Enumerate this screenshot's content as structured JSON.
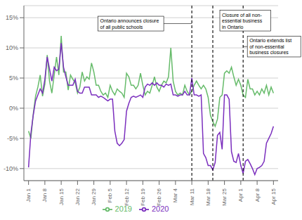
{
  "chart_data": {
    "type": "line",
    "x": [
      0,
      1,
      2,
      3,
      4,
      5,
      6,
      7,
      8,
      9,
      10,
      11,
      12,
      13,
      14,
      15,
      16,
      17,
      18,
      19,
      20,
      21,
      22,
      23,
      24,
      25,
      26,
      27,
      28,
      29,
      30,
      31,
      32,
      33,
      34,
      35,
      36,
      37,
      38,
      39,
      40,
      41,
      42,
      43,
      44,
      45,
      46,
      47,
      48,
      49,
      50,
      51,
      52,
      53,
      54,
      55,
      56,
      57,
      58,
      59,
      60,
      61,
      62,
      63,
      64,
      65,
      66,
      67,
      68,
      69,
      70,
      71,
      72,
      73,
      74,
      75,
      76,
      77,
      78,
      79,
      80,
      81,
      82,
      83,
      84,
      85,
      86,
      87,
      88,
      89,
      90,
      91,
      92,
      93,
      94,
      95,
      96,
      97,
      98,
      99,
      100,
      101,
      102,
      103,
      104,
      105
    ],
    "xlim": [
      -2,
      107
    ],
    "xticks": [
      {
        "value": 0,
        "label": "Jan 1"
      },
      {
        "value": 7,
        "label": "Jan 8"
      },
      {
        "value": 14,
        "label": "Jan 15"
      },
      {
        "value": 21,
        "label": "Jan 22"
      },
      {
        "value": 28,
        "label": "Jan 29"
      },
      {
        "value": 35,
        "label": "Feb 5"
      },
      {
        "value": 42,
        "label": "Feb 12"
      },
      {
        "value": 49,
        "label": "Feb 19"
      },
      {
        "value": 56,
        "label": "Feb 26"
      },
      {
        "value": 63,
        "label": "Mar 4"
      },
      {
        "value": 70,
        "label": "Mar 11"
      },
      {
        "value": 77,
        "label": "Mar 18"
      },
      {
        "value": 84,
        "label": "Mar 25"
      },
      {
        "value": 91,
        "label": "Apr 1"
      },
      {
        "value": 98,
        "label": "Apr 8"
      },
      {
        "value": 105,
        "label": "Apr 15"
      }
    ],
    "ylim": [
      -0.12,
      0.17
    ],
    "yticks": [
      {
        "value": -0.1,
        "label": "-10%"
      },
      {
        "value": -0.05,
        "label": "-5%"
      },
      {
        "value": 0.0,
        "label": "0%"
      },
      {
        "value": 0.05,
        "label": "5%"
      },
      {
        "value": 0.1,
        "label": "10%"
      },
      {
        "value": 0.15,
        "label": "15%"
      }
    ],
    "grid": true,
    "legend": "bottom",
    "series": [
      {
        "name": "2019",
        "color": "#66bb6a",
        "values": [
          -0.038,
          -0.05,
          -0.01,
          0.02,
          0.035,
          0.055,
          0.02,
          0.04,
          0.088,
          0.045,
          0.025,
          0.055,
          0.085,
          0.055,
          0.12,
          0.06,
          0.06,
          0.03,
          0.055,
          0.048,
          0.042,
          0.025,
          0.035,
          0.06,
          0.045,
          0.052,
          0.048,
          0.075,
          0.06,
          0.038,
          0.038,
          0.028,
          0.022,
          0.025,
          0.018,
          0.038,
          0.028,
          0.022,
          0.032,
          0.028,
          0.025,
          0.018,
          0.058,
          0.052,
          0.038,
          0.038,
          0.032,
          0.038,
          0.058,
          0.038,
          0.022,
          0.028,
          0.025,
          0.038,
          0.052,
          0.035,
          0.028,
          0.038,
          0.045,
          0.042,
          0.052,
          0.1,
          0.045,
          0.028,
          0.022,
          0.025,
          0.022,
          0.038,
          0.028,
          0.022,
          0.028,
          0.038,
          0.045,
          0.038,
          0.032,
          0.038,
          0.032,
          0.018,
          -0.012,
          -0.022,
          -0.03,
          -0.018,
          0.018,
          0.022,
          0.058,
          0.062,
          0.058,
          0.068,
          0.052,
          0.038,
          0.048,
          0.038,
          0.022,
          0.018,
          0.048,
          0.032,
          0.032,
          0.022,
          0.028,
          0.022,
          0.032,
          0.025,
          0.038,
          0.022,
          0.035,
          0.025
        ]
      },
      {
        "name": "2020",
        "color": "#7b2fbe",
        "values": [
          -0.098,
          -0.042,
          -0.012,
          0.012,
          0.022,
          0.032,
          0.025,
          0.048,
          0.085,
          0.065,
          0.045,
          0.068,
          0.062,
          0.065,
          0.108,
          0.068,
          0.052,
          0.038,
          0.038,
          0.038,
          0.048,
          0.028,
          0.025,
          0.025,
          0.035,
          0.035,
          0.035,
          0.022,
          0.022,
          0.022,
          0.018,
          0.02,
          0.018,
          0.015,
          0.012,
          0.015,
          0.015,
          -0.038,
          -0.058,
          -0.062,
          -0.058,
          -0.052,
          -0.005,
          0.008,
          0.018,
          0.02,
          0.018,
          0.02,
          0.022,
          0.018,
          0.035,
          0.04,
          0.038,
          0.042,
          0.038,
          0.042,
          0.038,
          0.038,
          0.035,
          0.04,
          0.038,
          0.04,
          0.022,
          0.022,
          0.02,
          0.022,
          0.022,
          0.028,
          0.022,
          0.022,
          0.05,
          0.022,
          0.022,
          0.02,
          0.022,
          -0.075,
          -0.082,
          -0.095,
          -0.095,
          -0.102,
          -0.09,
          -0.045,
          -0.04,
          -0.068,
          0.022,
          0.022,
          0.015,
          -0.072,
          -0.088,
          -0.09,
          -0.075,
          -0.095,
          -0.108,
          -0.088,
          -0.085,
          -0.092,
          -0.1,
          -0.11,
          -0.1,
          -0.098,
          -0.095,
          -0.088,
          -0.058,
          -0.05,
          -0.042,
          -0.03
        ]
      }
    ],
    "annotations": [
      {
        "text": "Ontario announces closure\nof all public schools",
        "x": 70,
        "y": 0.128
      },
      {
        "text": "Closure of all non-\nessential business\nin Ontario",
        "x": 79,
        "y": 0.128
      },
      {
        "text": "Ontario extends list\nof non-essential\nbusiness closures",
        "x": 92,
        "y": 0.085
      }
    ]
  }
}
